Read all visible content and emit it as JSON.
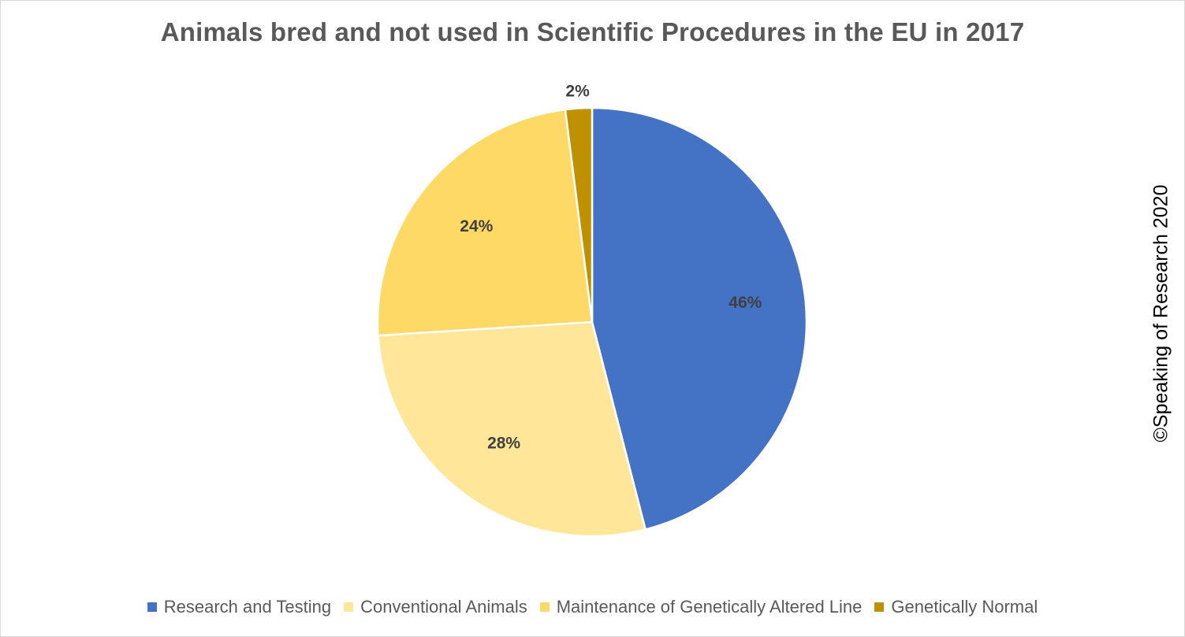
{
  "chart_data": {
    "type": "pie",
    "title": "Animals bred and not used in Scientific Procedures in the EU in 2017",
    "slices": [
      {
        "name": "Research and Testing",
        "value": 46,
        "label": "46%",
        "color": "#4472C4"
      },
      {
        "name": "Conventional Animals",
        "value": 28,
        "label": "28%",
        "color": "#FFE699"
      },
      {
        "name": "Maintenance of Genetically Altered Line",
        "value": 24,
        "label": "24%",
        "color": "#FFD966"
      },
      {
        "name": "Genetically Normal",
        "value": 2,
        "label": "2%",
        "color": "#BF9000"
      }
    ],
    "start_angle_deg": 0,
    "direction": "clockwise",
    "legend_position": "bottom"
  },
  "watermark": "©Speaking of Research 2020"
}
